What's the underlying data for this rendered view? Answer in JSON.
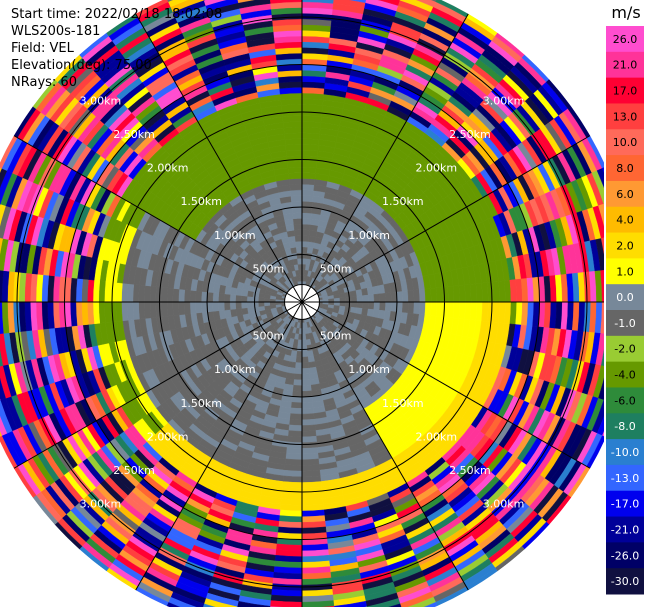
{
  "meta": {
    "start_time": "Start time: 2022/02/18 18:02:08",
    "instrument": "WLS200s-181",
    "field": "Field: VEL",
    "elevation": "Elevation(deg): 75.00",
    "nrays": "NRays: 60"
  },
  "chart_data": {
    "type": "heatmap",
    "projection": "polar-ppi",
    "field": "VEL",
    "unit": "m/s",
    "n_rays": 60,
    "elevation_deg": 75.0,
    "range_km": [
      0.0,
      3.5
    ],
    "range_rings_km": [
      0.5,
      1.0,
      1.5,
      2.0,
      2.5,
      3.0
    ],
    "range_labels": [
      "500m",
      "1.00km",
      "1.50km",
      "2.00km",
      "2.50km",
      "3.00km"
    ],
    "spokes_deg": [
      0,
      30,
      60,
      90,
      120,
      150,
      180,
      210,
      240,
      270,
      300,
      330
    ],
    "grid": true,
    "colorbar": {
      "title": "m/s",
      "tick_labels": [
        "26.0",
        "21.0",
        "17.0",
        "13.0",
        "10.0",
        "8.0",
        "6.0",
        "4.0",
        "2.0",
        "1.0",
        "0.0",
        "-1.0",
        "-2.0",
        "-4.0",
        "-6.0",
        "-8.0",
        "-10.0",
        "-13.0",
        "-17.0",
        "-21.0",
        "-26.0",
        "-30.0"
      ],
      "bins": [
        {
          "min": 26,
          "max": 30,
          "color": "#ff4dcf"
        },
        {
          "min": 21,
          "max": 26,
          "color": "#ff3399"
        },
        {
          "min": 17,
          "max": 21,
          "color": "#ff0033"
        },
        {
          "min": 13,
          "max": 17,
          "color": "#ff3f3f"
        },
        {
          "min": 10,
          "max": 13,
          "color": "#ff6a5a"
        },
        {
          "min": 8,
          "max": 10,
          "color": "#ff6633"
        },
        {
          "min": 6,
          "max": 8,
          "color": "#ff9933"
        },
        {
          "min": 4,
          "max": 6,
          "color": "#ffbb00"
        },
        {
          "min": 2,
          "max": 4,
          "color": "#ffdd00"
        },
        {
          "min": 1,
          "max": 2,
          "color": "#ffff00"
        },
        {
          "min": 0,
          "max": 1,
          "color": "#778899"
        },
        {
          "min": -1,
          "max": 0,
          "color": "#666666"
        },
        {
          "min": -2,
          "max": -1,
          "color": "#99cc33"
        },
        {
          "min": -4,
          "max": -2,
          "color": "#669900"
        },
        {
          "min": -6,
          "max": -4,
          "color": "#2e8b3a"
        },
        {
          "min": -8,
          "max": -6,
          "color": "#1e7f60"
        },
        {
          "min": -10,
          "max": -8,
          "color": "#2a7fd0"
        },
        {
          "min": -13,
          "max": -10,
          "color": "#3366ff"
        },
        {
          "min": -17,
          "max": -13,
          "color": "#0000ee"
        },
        {
          "min": -21,
          "max": -17,
          "color": "#000099"
        },
        {
          "min": -26,
          "max": -21,
          "color": "#000066"
        },
        {
          "min": -30,
          "max": -26,
          "color": "#101040"
        }
      ]
    },
    "velocity_pattern": {
      "description_ranges": [
        {
          "range_km": [
            0.1,
            1.3
          ],
          "values_mps": [
            -1.0,
            0.5
          ]
        },
        {
          "range_km": [
            1.3,
            1.9
          ],
          "sector_deg": [
            150,
            300
          ],
          "value_mps": -0.5
        },
        {
          "range_km": [
            1.3,
            1.9
          ],
          "sector_deg": [
            300,
            90
          ],
          "value_mps": -2.5
        },
        {
          "range_km": [
            1.3,
            1.9
          ],
          "sector_deg": [
            90,
            150
          ],
          "value_mps": 1.5
        },
        {
          "range_km": [
            1.9,
            2.2
          ],
          "sector_deg": [
            300,
            90
          ],
          "value_mps": -3.0
        },
        {
          "range_km": [
            1.9,
            2.2
          ],
          "sector_deg": [
            90,
            230
          ],
          "value_mps": 2.5
        },
        {
          "range_km": [
            2.2,
            3.5
          ],
          "values_mps": [
            -30.0,
            30.0
          ]
        }
      ]
    }
  }
}
